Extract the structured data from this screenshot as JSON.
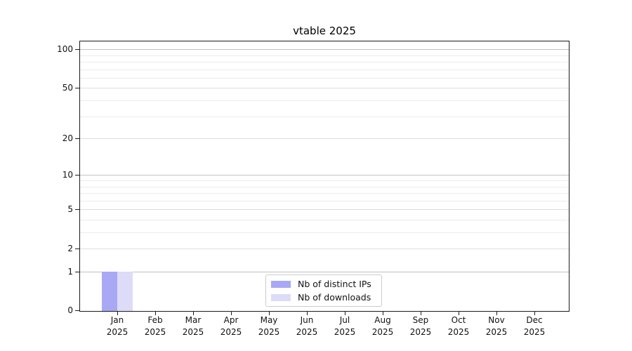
{
  "chart_data": {
    "type": "bar",
    "title": "vtable 2025",
    "categories": [
      "Jan",
      "Feb",
      "Mar",
      "Apr",
      "May",
      "Jun",
      "Jul",
      "Aug",
      "Sep",
      "Oct",
      "Nov",
      "Dec"
    ],
    "category_year": "2025",
    "series": [
      {
        "name": "Nb of distinct IPs",
        "color": "#a8a8f5",
        "values": [
          1,
          0,
          0,
          0,
          0,
          0,
          0,
          0,
          0,
          0,
          0,
          0
        ]
      },
      {
        "name": "Nb of downloads",
        "color": "#dcdcf8",
        "values": [
          1,
          0,
          0,
          0,
          0,
          0,
          0,
          0,
          0,
          0,
          0,
          0
        ]
      }
    ],
    "xlabel": "",
    "ylabel": "",
    "yscale": "log1p",
    "ylim": [
      0,
      115
    ],
    "yticks": [
      0,
      1,
      2,
      5,
      10,
      20,
      50,
      100
    ],
    "minor_yticks": [
      3,
      4,
      6,
      7,
      8,
      9,
      30,
      40,
      60,
      70,
      80,
      90
    ],
    "grid": "horizontal",
    "legend_position": "inside-bottom-center"
  },
  "colors": {
    "decade_gridline": "#c2c2c2",
    "major_gridline": "#dedede",
    "minor_gridline": "#ececec",
    "axis": "#1a1a1a",
    "tick_text": "#111111",
    "legend_border": "#cccccc"
  }
}
